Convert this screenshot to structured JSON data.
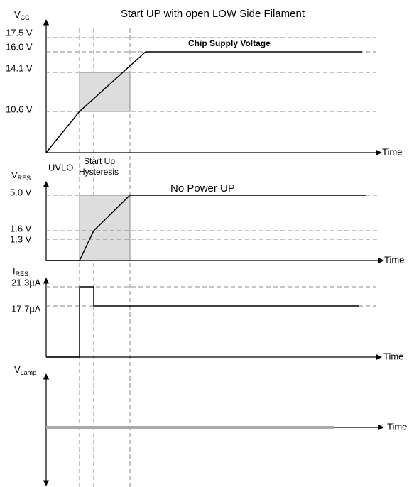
{
  "title": "Start UP with open LOW Side Filament",
  "panels": [
    {
      "label": {
        "main": "V",
        "sub": "CC"
      },
      "levels": [
        "17.5 V",
        "16.0 V",
        "14.1 V",
        "10.6 V"
      ],
      "axis": "Time",
      "annotation": "Chip Supply  Voltage"
    },
    {
      "label": {
        "main": "V",
        "sub": "RES"
      },
      "levels": [
        "5.0 V",
        "1.6 V",
        "1.3 V"
      ],
      "axis": "Time",
      "annotation": "No Power UP"
    },
    {
      "label": {
        "main": "I",
        "sub": "RES"
      },
      "levels": [
        "21.3µA",
        "17.7µA"
      ],
      "axis": "Time"
    },
    {
      "label": {
        "main": "V",
        "sub": "Lamp"
      },
      "axis": "Time"
    }
  ],
  "phases": [
    "UVLO",
    "Start Up",
    "Hysteresis"
  ]
}
